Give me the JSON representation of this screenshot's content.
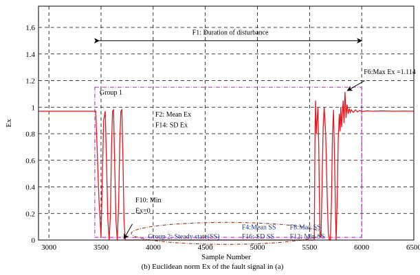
{
  "chart_data": {
    "type": "line",
    "title": "",
    "xlabel": "Sample Number",
    "ylabel": "Ex",
    "caption": "(b) Euclidean norm Ex of the fault signal in (a)",
    "xlim": [
      2900,
      6500
    ],
    "ylim": [
      0,
      1.76
    ],
    "grid": true,
    "x_ticks": [
      3000,
      3500,
      4000,
      4500,
      5000,
      5500,
      6000,
      6500
    ],
    "y_ticks": [
      0,
      0.2,
      0.4,
      0.6,
      0.8,
      1,
      1.2,
      1.4,
      1.6
    ],
    "x_tick_labels": [
      "3000",
      "3500",
      "4000",
      "4500",
      "5000",
      "5500",
      "6000",
      "6500"
    ],
    "y_tick_labels": [
      "0",
      "0.2",
      "0.4",
      "0.6",
      "0.8",
      "1",
      "1.2",
      "1.4",
      "1.6"
    ],
    "series": [
      {
        "color": "#e8141b",
        "x": [
          2900,
          3450,
          3450,
          3480,
          3500,
          3510,
          3525,
          3540,
          3552,
          3565,
          3578,
          3590,
          3600,
          3610,
          3620,
          3630,
          3643,
          3655,
          3668,
          3680,
          3690,
          3700,
          3710,
          3720,
          3733,
          3745,
          3758,
          3770,
          3785,
          3800,
          4500,
          5500,
          5545,
          5548,
          5552,
          5558,
          5565,
          5572,
          5580,
          5588,
          5595,
          5600,
          5610,
          5620,
          5630,
          5640,
          5655,
          5670,
          5680,
          5690,
          5700,
          5710,
          5720,
          5730,
          5740,
          5750,
          5755,
          5765,
          5775,
          5785,
          5793,
          5800,
          5808,
          5815,
          5822,
          5830,
          5840,
          5850,
          5860,
          5870,
          5880,
          5890,
          5900,
          5920,
          5940,
          5960,
          5980,
          6000,
          6050,
          6100,
          6200,
          6300,
          6400,
          6500
        ],
        "y": [
          0.97,
          0.97,
          0.96,
          0.3,
          0.02,
          0.4,
          0.9,
          0.97,
          0.6,
          0.15,
          0,
          0.2,
          0.7,
          0.97,
          0.98,
          0.6,
          0.15,
          0,
          0.25,
          0.75,
          0.97,
          0.98,
          0.6,
          0.15,
          0,
          0,
          0,
          0,
          0,
          0,
          0,
          0,
          0,
          0.3,
          0.75,
          1.05,
          0.8,
          0.9,
          1.0,
          0.7,
          0.3,
          0.05,
          0.02,
          0.4,
          0.85,
          1.0,
          0.8,
          0.3,
          0.05,
          0,
          0,
          0.3,
          0.8,
          0.98,
          0.6,
          0.15,
          0,
          0.3,
          0.75,
          0.95,
          0.82,
          1.0,
          0.85,
          0.95,
          1.05,
          0.88,
          1.114,
          0.92,
          1.02,
          0.95,
          0.99,
          0.96,
          0.98,
          0.96,
          0.98,
          0.965,
          0.975,
          0.968,
          0.972,
          0.97,
          0.972,
          0.97,
          0.971,
          0.97
        ]
      }
    ],
    "annotations": {
      "f1": "F1: Duration of disturbance",
      "f6": "F6:Max Ex =1.114",
      "group1": "Group 1",
      "f2": "F2: Mean Ex",
      "f14": "F14: SD Ex",
      "f10_line1": "F10: Min",
      "f10_line2": "Ex=0",
      "group2": "Group 2: Steady state(SS)",
      "f4": "F4:Mean SS",
      "f16": "F16: SD SS",
      "f8": "F8:Max SS",
      "f12": "F12: Min SS"
    },
    "regions": {
      "f1_span_x": [
        3480,
        6000
      ],
      "f1_y": 1.5,
      "group1_x": [
        3440,
        6000
      ],
      "group1_y": [
        0.02,
        1.15
      ],
      "f6_point": [
        5850,
        1.114
      ]
    },
    "colors": {
      "line": "#e8141b",
      "group1_box": "#cc33cc",
      "group2_ellipse": "#8b3a1a",
      "group2_text": "#1f3b8f"
    }
  }
}
